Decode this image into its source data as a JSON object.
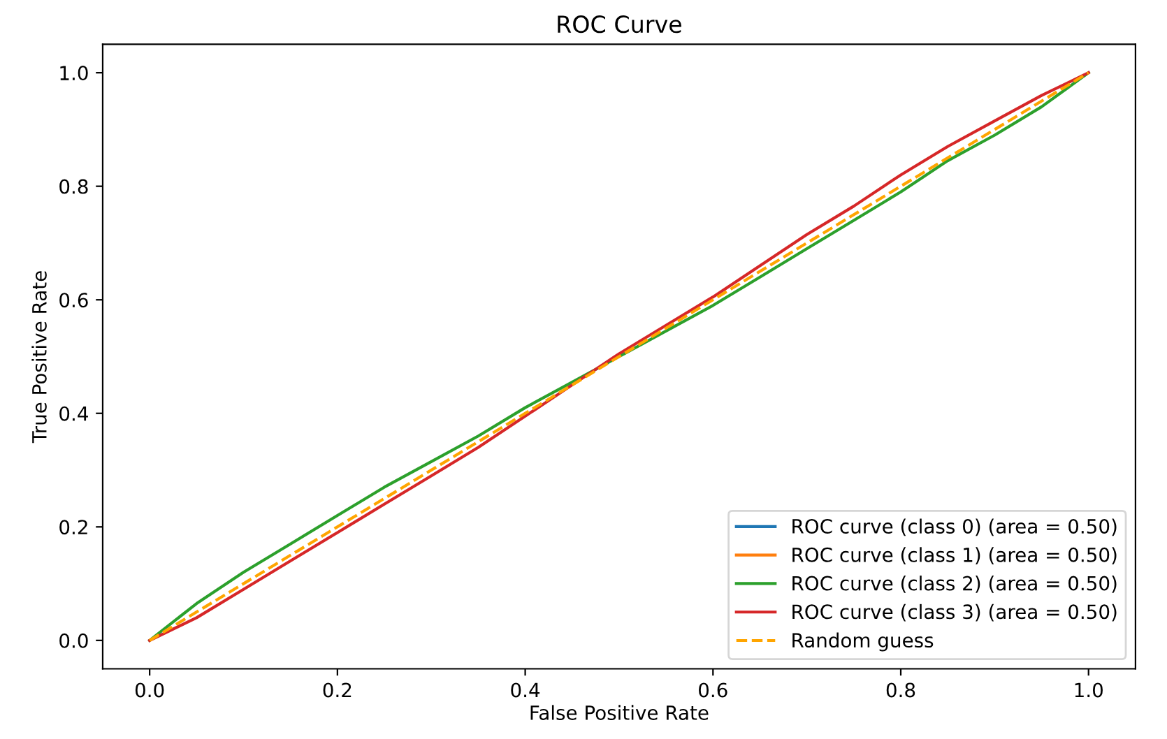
{
  "chart_data": {
    "type": "line",
    "title": "ROC Curve",
    "xlabel": "False Positive Rate",
    "ylabel": "True Positive Rate",
    "xlim": [
      -0.05,
      1.05
    ],
    "ylim": [
      -0.05,
      1.05
    ],
    "xticks": [
      {
        "value": 0,
        "label": "0.0"
      },
      0.2,
      0.4,
      0.6,
      0.8,
      {
        "value": 1,
        "label": "1.0"
      }
    ],
    "yticks": [
      {
        "value": 0,
        "label": "0.0"
      },
      0.2,
      0.4,
      0.6,
      0.8,
      {
        "value": 1,
        "label": "1.0"
      }
    ],
    "grid": false,
    "legend": "bottom right",
    "marker": "none",
    "series": [
      {
        "name": "ROC curve (class 0) (area = 0.50)",
        "color": "#1f77b4"
      },
      {
        "name": "ROC curve (class 1) (area = 0.50)",
        "color": "#ff7f0e"
      },
      {
        "name": "ROC curve (class 2) (area = 0.50)",
        "color": "#2ca02c",
        "x": [
          0,
          0.05,
          0.1,
          0.15,
          0.2,
          0.25,
          0.3,
          0.35,
          0.4,
          0.45,
          0.5,
          0.55,
          0.6,
          0.65,
          0.7,
          0.75,
          0.8,
          0.85,
          0.9,
          0.95,
          1
        ],
        "values": [
          0,
          0.065,
          0.12,
          0.17,
          0.22,
          0.27,
          0.315,
          0.36,
          0.41,
          0.455,
          0.5,
          0.545,
          0.59,
          0.64,
          0.69,
          0.74,
          0.79,
          0.845,
          0.89,
          0.94,
          1
        ]
      },
      {
        "name": "ROC curve (class 3) (area = 0.50)",
        "color": "#d62728",
        "x": [
          0,
          0.05,
          0.1,
          0.15,
          0.2,
          0.25,
          0.3,
          0.35,
          0.4,
          0.45,
          0.5,
          0.55,
          0.6,
          0.65,
          0.7,
          0.75,
          0.8,
          0.85,
          0.9,
          0.95,
          1
        ],
        "values": [
          0,
          0.04,
          0.09,
          0.14,
          0.19,
          0.24,
          0.29,
          0.34,
          0.395,
          0.45,
          0.505,
          0.555,
          0.605,
          0.66,
          0.715,
          0.765,
          0.82,
          0.87,
          0.915,
          0.96,
          1
        ]
      },
      {
        "name": "Random guess",
        "color": "#ffa500",
        "line_style": "dashed",
        "x": [
          0,
          1
        ],
        "values": [
          0,
          1
        ]
      }
    ]
  }
}
